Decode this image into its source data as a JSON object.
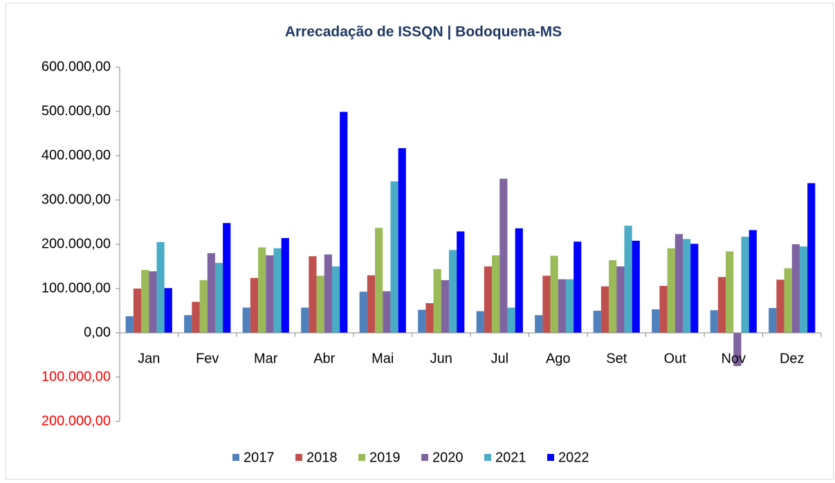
{
  "chart_data": {
    "type": "bar",
    "title": "Arrecadação de ISSQN | Bodoquena-MS",
    "categories": [
      "Jan",
      "Fev",
      "Mar",
      "Abr",
      "Mai",
      "Jun",
      "Jul",
      "Ago",
      "Set",
      "Out",
      "Nov",
      "Dez"
    ],
    "series": [
      {
        "name": "2017",
        "color": "#4f81bd",
        "values": [
          37500,
          40000,
          57000,
          57000,
          93000,
          52000,
          49000,
          40000,
          50000,
          53000,
          51000,
          56000
        ]
      },
      {
        "name": "2018",
        "color": "#c0504d",
        "values": [
          100000,
          70000,
          124000,
          173000,
          130000,
          67000,
          150000,
          129000,
          105000,
          106000,
          126000,
          120000
        ]
      },
      {
        "name": "2019",
        "color": "#9bbb59",
        "values": [
          142000,
          119000,
          193000,
          129000,
          237000,
          144000,
          175000,
          174000,
          164000,
          191000,
          184000,
          146000
        ]
      },
      {
        "name": "2020",
        "color": "#8064a2",
        "values": [
          139000,
          180000,
          175000,
          177000,
          94000,
          119000,
          348000,
          121000,
          150000,
          223000,
          -75000,
          200000
        ]
      },
      {
        "name": "2021",
        "color": "#4bacc6",
        "values": [
          205000,
          158000,
          191000,
          150000,
          342000,
          187000,
          57000,
          121000,
          242000,
          212000,
          217000,
          195000
        ]
      },
      {
        "name": "2022",
        "color": "#0000ff",
        "values": [
          101000,
          248000,
          214000,
          499000,
          417000,
          229000,
          236000,
          206000,
          208000,
          201000,
          232000,
          338000
        ]
      }
    ],
    "ylim": [
      -200000,
      600000
    ],
    "yticks": [
      {
        "value": -200000,
        "label": "200.000,00"
      },
      {
        "value": -100000,
        "label": "100.000,00"
      },
      {
        "value": 0,
        "label": "0,00"
      },
      {
        "value": 100000,
        "label": "100.000,00"
      },
      {
        "value": 200000,
        "label": "200.000,00"
      },
      {
        "value": 300000,
        "label": "300.000,00"
      },
      {
        "value": 400000,
        "label": "400.000,00"
      },
      {
        "value": 500000,
        "label": "500.000,00"
      },
      {
        "value": 600000,
        "label": "600.000,00"
      }
    ],
    "negative_tick_color": "#ff0000",
    "grid": false,
    "legend": "bottom"
  }
}
